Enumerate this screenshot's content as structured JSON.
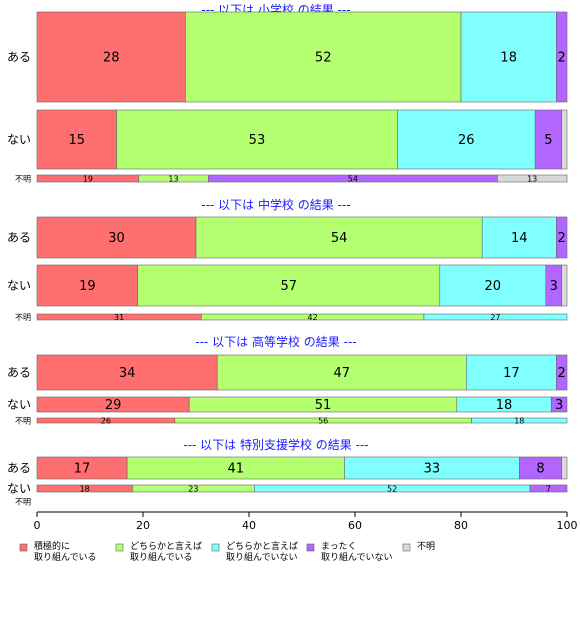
{
  "chart_data": {
    "type": "bar",
    "orientation": "horizontal",
    "stacked": "percent",
    "xlim": [
      0,
      100
    ],
    "xticks": [
      "0",
      "20",
      "40",
      "60",
      "80",
      "100"
    ],
    "top_labels": [
      "積極的に取り組んでい..",
      "どちらかと言えば取り組んでいる",
      "どちらかと言..",
      "ま",
      "不明"
    ],
    "colors": [
      "#ff6f6f",
      "#b3ff6f",
      "#80ffff",
      "#b366ff",
      "#d9d9d9"
    ],
    "legend": {
      "placement": "bottom",
      "items": [
        [
          "積極的に",
          "取り組んでいる"
        ],
        [
          "どちらかと言えば",
          "取り組んでいる"
        ],
        [
          "どちらかと言えば",
          "取り組んでいない"
        ],
        [
          "まったく",
          "取り組んでいない"
        ],
        [
          "不明"
        ]
      ]
    },
    "groups": [
      {
        "title": "--- 以下は 小学校 の結果 ---",
        "rows": [
          {
            "label": "ある",
            "size": "large",
            "values": [
              28,
              52,
              18,
              2,
              0
            ]
          },
          {
            "label": "ない",
            "size": "large",
            "values": [
              15,
              53,
              26,
              5,
              1
            ]
          },
          {
            "label": "不明",
            "size": "thin",
            "values": [
              19,
              13,
              0,
              54,
              13
            ]
          }
        ]
      },
      {
        "title": "--- 以下は 中学校 の結果 ---",
        "rows": [
          {
            "label": "ある",
            "size": "large",
            "values": [
              30,
              54,
              14,
              2,
              0
            ]
          },
          {
            "label": "ない",
            "size": "large",
            "values": [
              19,
              57,
              20,
              3,
              1
            ]
          },
          {
            "label": "不明",
            "size": "thin",
            "values": [
              31,
              42,
              27,
              0,
              0
            ]
          }
        ]
      },
      {
        "title": "--- 以下は 高等学校 の結果 ---",
        "rows": [
          {
            "label": "ある",
            "size": "large",
            "values": [
              34,
              47,
              17,
              2,
              0
            ]
          },
          {
            "label": "ない",
            "size": "medium",
            "values": [
              29,
              51,
              18,
              3,
              0
            ]
          },
          {
            "label": "不明",
            "size": "thin",
            "values": [
              26,
              56,
              18,
              0,
              0
            ]
          }
        ]
      },
      {
        "title": "--- 以下は 特別支援学校 の結果 ---",
        "rows": [
          {
            "label": "ある",
            "size": "medium",
            "values": [
              17,
              41,
              33,
              8,
              1
            ]
          },
          {
            "label": "ない",
            "size": "small",
            "values": [
              18,
              23,
              52,
              7,
              0
            ]
          },
          {
            "label": "不明",
            "size": "empty",
            "values": []
          }
        ]
      }
    ]
  }
}
